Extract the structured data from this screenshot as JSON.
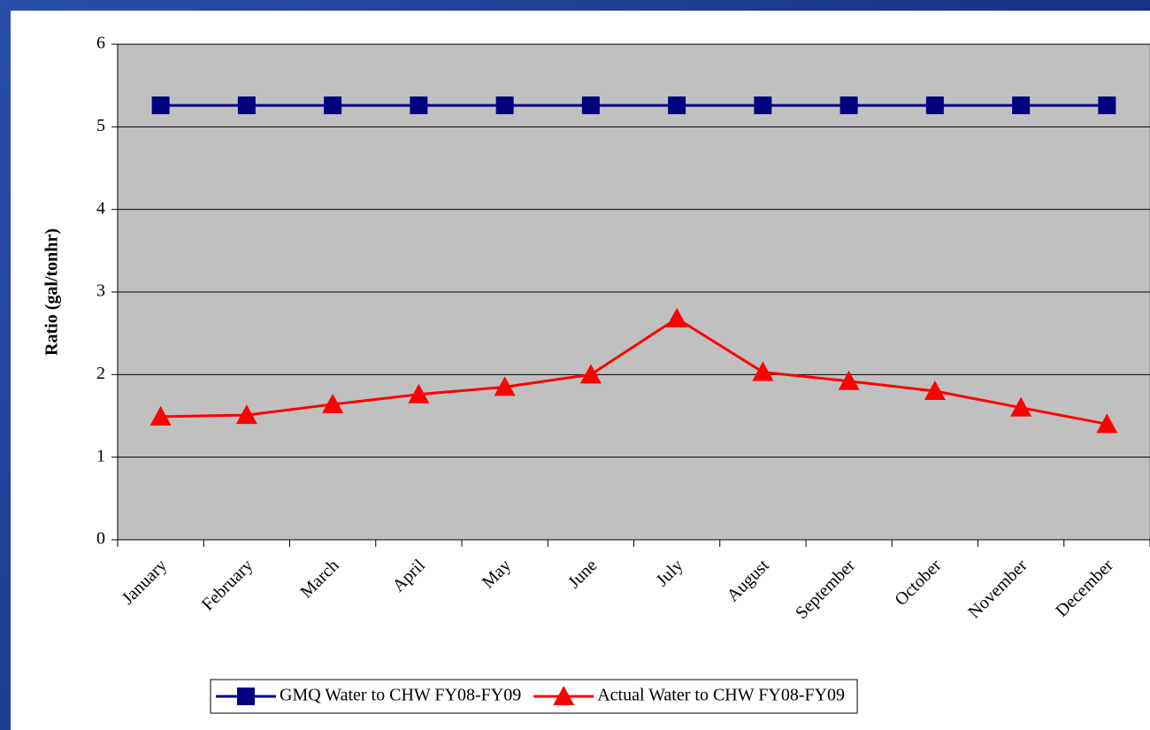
{
  "chart_data": {
    "type": "line",
    "y_label": "Ratio (gal/tonhr)",
    "categories": [
      "January",
      "February",
      "March",
      "April",
      "May",
      "June",
      "July",
      "August",
      "September",
      "October",
      "November",
      "December"
    ],
    "series": [
      {
        "name": "GMQ Water to CHW FY08-FY09",
        "color": "#000080",
        "marker": "square",
        "values": [
          5.26,
          5.26,
          5.26,
          5.26,
          5.26,
          5.26,
          5.26,
          5.26,
          5.26,
          5.26,
          5.26,
          5.26
        ]
      },
      {
        "name": "Actual Water to CHW FY08-FY09",
        "color": "#ff0000",
        "marker": "triangle",
        "values": [
          1.49,
          1.51,
          1.64,
          1.76,
          1.85,
          2.0,
          2.68,
          2.03,
          1.92,
          1.8,
          1.6,
          1.4
        ]
      }
    ],
    "ylim": [
      0,
      6
    ],
    "yticks": [
      0,
      1,
      2,
      3,
      4,
      5,
      6
    ],
    "grid": true,
    "legend": "bottom"
  }
}
